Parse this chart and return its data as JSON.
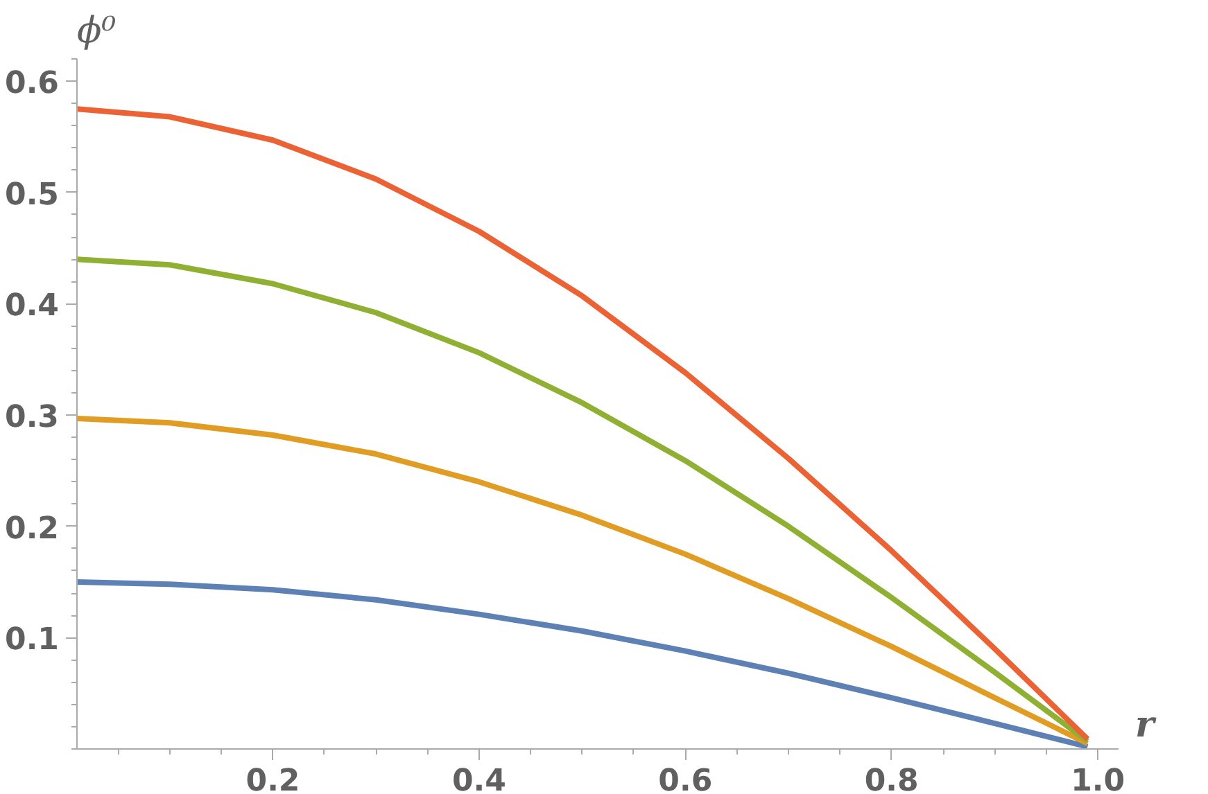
{
  "chart_data": {
    "type": "line",
    "xlabel": "r",
    "ylabel": "ϕ⁰",
    "x": [
      0.01,
      0.1,
      0.2,
      0.3,
      0.4,
      0.5,
      0.6,
      0.7,
      0.8,
      0.9,
      0.99
    ],
    "series": [
      {
        "color": "#5e81b5",
        "values": [
          0.15,
          0.148,
          0.143,
          0.134,
          0.121,
          0.106,
          0.088,
          0.068,
          0.046,
          0.023,
          0.002
        ]
      },
      {
        "color": "#e19c24",
        "values": [
          0.297,
          0.293,
          0.282,
          0.265,
          0.24,
          0.21,
          0.175,
          0.135,
          0.092,
          0.046,
          0.005
        ]
      },
      {
        "color": "#8fb032",
        "values": [
          0.44,
          0.435,
          0.418,
          0.392,
          0.356,
          0.311,
          0.259,
          0.2,
          0.136,
          0.069,
          0.007
        ]
      },
      {
        "color": "#eb6235",
        "values": [
          0.575,
          0.568,
          0.547,
          0.512,
          0.465,
          0.407,
          0.338,
          0.261,
          0.178,
          0.09,
          0.009
        ]
      }
    ],
    "xlim": [
      0.01,
      1.02
    ],
    "ylim": [
      0,
      0.62
    ],
    "xticks": [
      0.2,
      0.4,
      0.6,
      0.8,
      {
        "value": 1.0,
        "label": "1.0"
      }
    ],
    "yticks": [
      0.1,
      0.2,
      0.3,
      0.4,
      0.5,
      0.6
    ],
    "grid": false
  }
}
